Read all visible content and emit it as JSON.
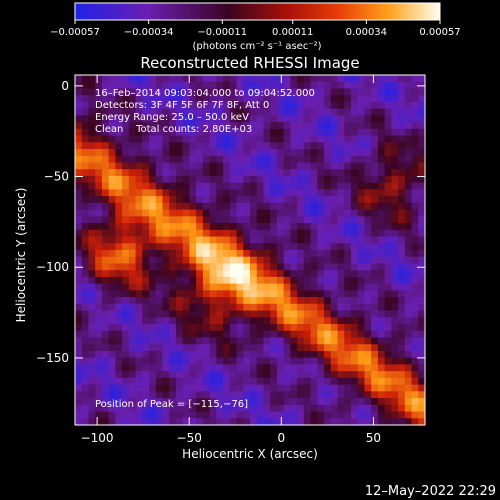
{
  "chart_data": {
    "type": "heatmap",
    "title": "Reconstructed RHESSI Image",
    "xlabel": "Heliocentric X (arcsec)",
    "ylabel": "Heliocentric Y (arcsec)",
    "xlim": [
      -112,
      78
    ],
    "ylim": [
      -187,
      6
    ],
    "xticks": [
      -100,
      -50,
      0,
      50
    ],
    "xtick_labels": [
      "−100",
      "−50",
      "0",
      "50"
    ],
    "yticks": [
      0,
      -50,
      -100,
      -150
    ],
    "ytick_labels": [
      "0",
      "−50",
      "−100",
      "−150"
    ],
    "colorbar": {
      "range": [
        -0.00057,
        0.00057
      ],
      "ticks": [
        -0.00057,
        -0.00034,
        -0.00011,
        0.00011,
        0.00034,
        0.00057
      ],
      "tick_labels": [
        "−0.00057",
        "−0.00034",
        "−0.00011",
        "0.00011",
        "0.00034",
        "0.00057"
      ],
      "unit_label": "(photons cm⁻² s⁻¹ asec⁻²)",
      "colors": [
        "#1f22e8",
        "#6a1fb0",
        "#3b0420",
        "#d02008",
        "#ff9a14",
        "#fffff0"
      ]
    },
    "annotations": {
      "time_range": "16–Feb–2014 09:03:04.000 to 09:04:52.000",
      "detectors": "Detectors: 3F 4F 5F 6F 7F 8F, Att 0",
      "energy": "Energy Range: 25.0 – 50.0 keV",
      "clean": "Clean    Total counts: 2.80E+03",
      "peak": "Position of Peak = [−115,−76]"
    },
    "peak_position": [
      -115,
      -76
    ],
    "total_counts": 2800,
    "grid": false
  },
  "footer": {
    "timestamp": "12–May–2022 22:29"
  }
}
